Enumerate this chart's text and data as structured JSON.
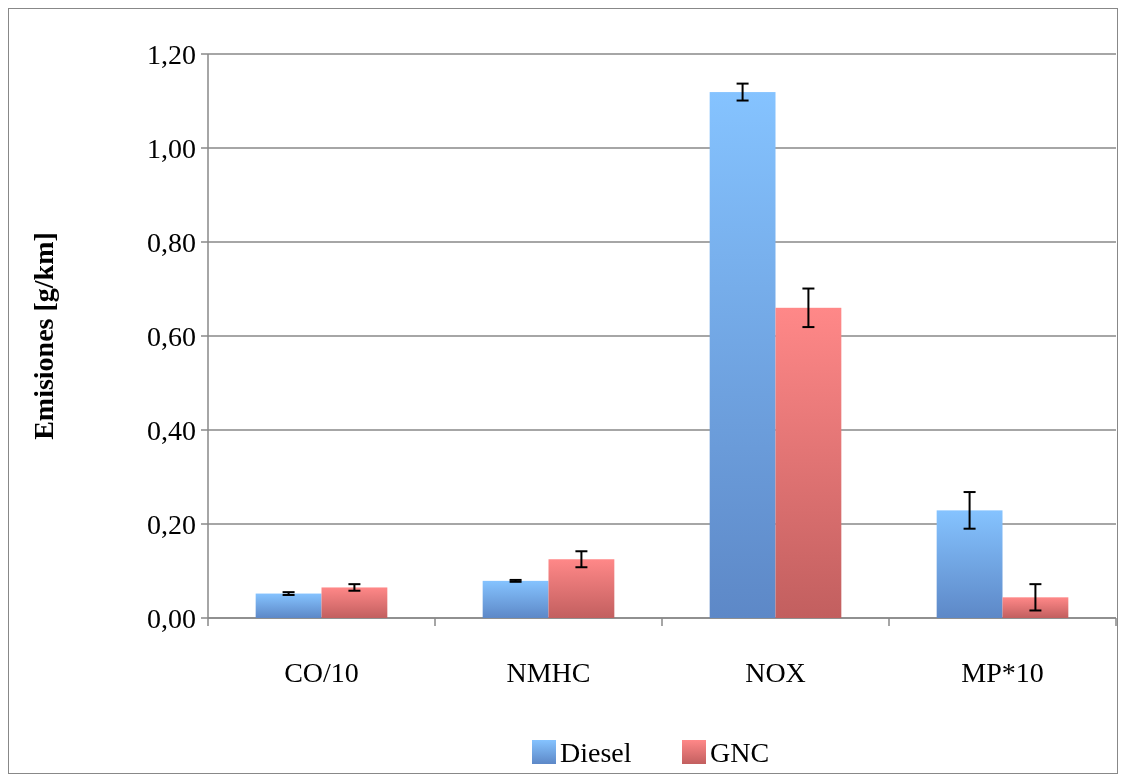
{
  "chart_data": {
    "type": "bar",
    "ylabel": "Emisiones [g/km]",
    "categories": [
      "CO/10",
      "NMHC",
      "NOX",
      "MP*10"
    ],
    "series": [
      {
        "name": "Diesel",
        "color": "#6fa3ee",
        "values": [
          0.052,
          0.079,
          1.119,
          0.229
        ],
        "errors": [
          0.003,
          0.002,
          0.018,
          0.039
        ]
      },
      {
        "name": "GNC",
        "color": "#e87272",
        "values": [
          0.065,
          0.125,
          0.66,
          0.044
        ],
        "errors": [
          0.007,
          0.017,
          0.041,
          0.028
        ]
      }
    ],
    "ylim": [
      0,
      1.2
    ],
    "yticks": [
      {
        "value": 0,
        "label": "0,00"
      },
      {
        "value": 0.2,
        "label": "0,20"
      },
      {
        "value": 0.4,
        "label": "0,40"
      },
      {
        "value": 0.6,
        "label": "0,60"
      },
      {
        "value": 0.8,
        "label": "0,80"
      },
      {
        "value": 1,
        "label": "1,00"
      },
      {
        "value": 1.2,
        "label": "1,20"
      }
    ],
    "grid": "y",
    "legend": "bottom"
  }
}
